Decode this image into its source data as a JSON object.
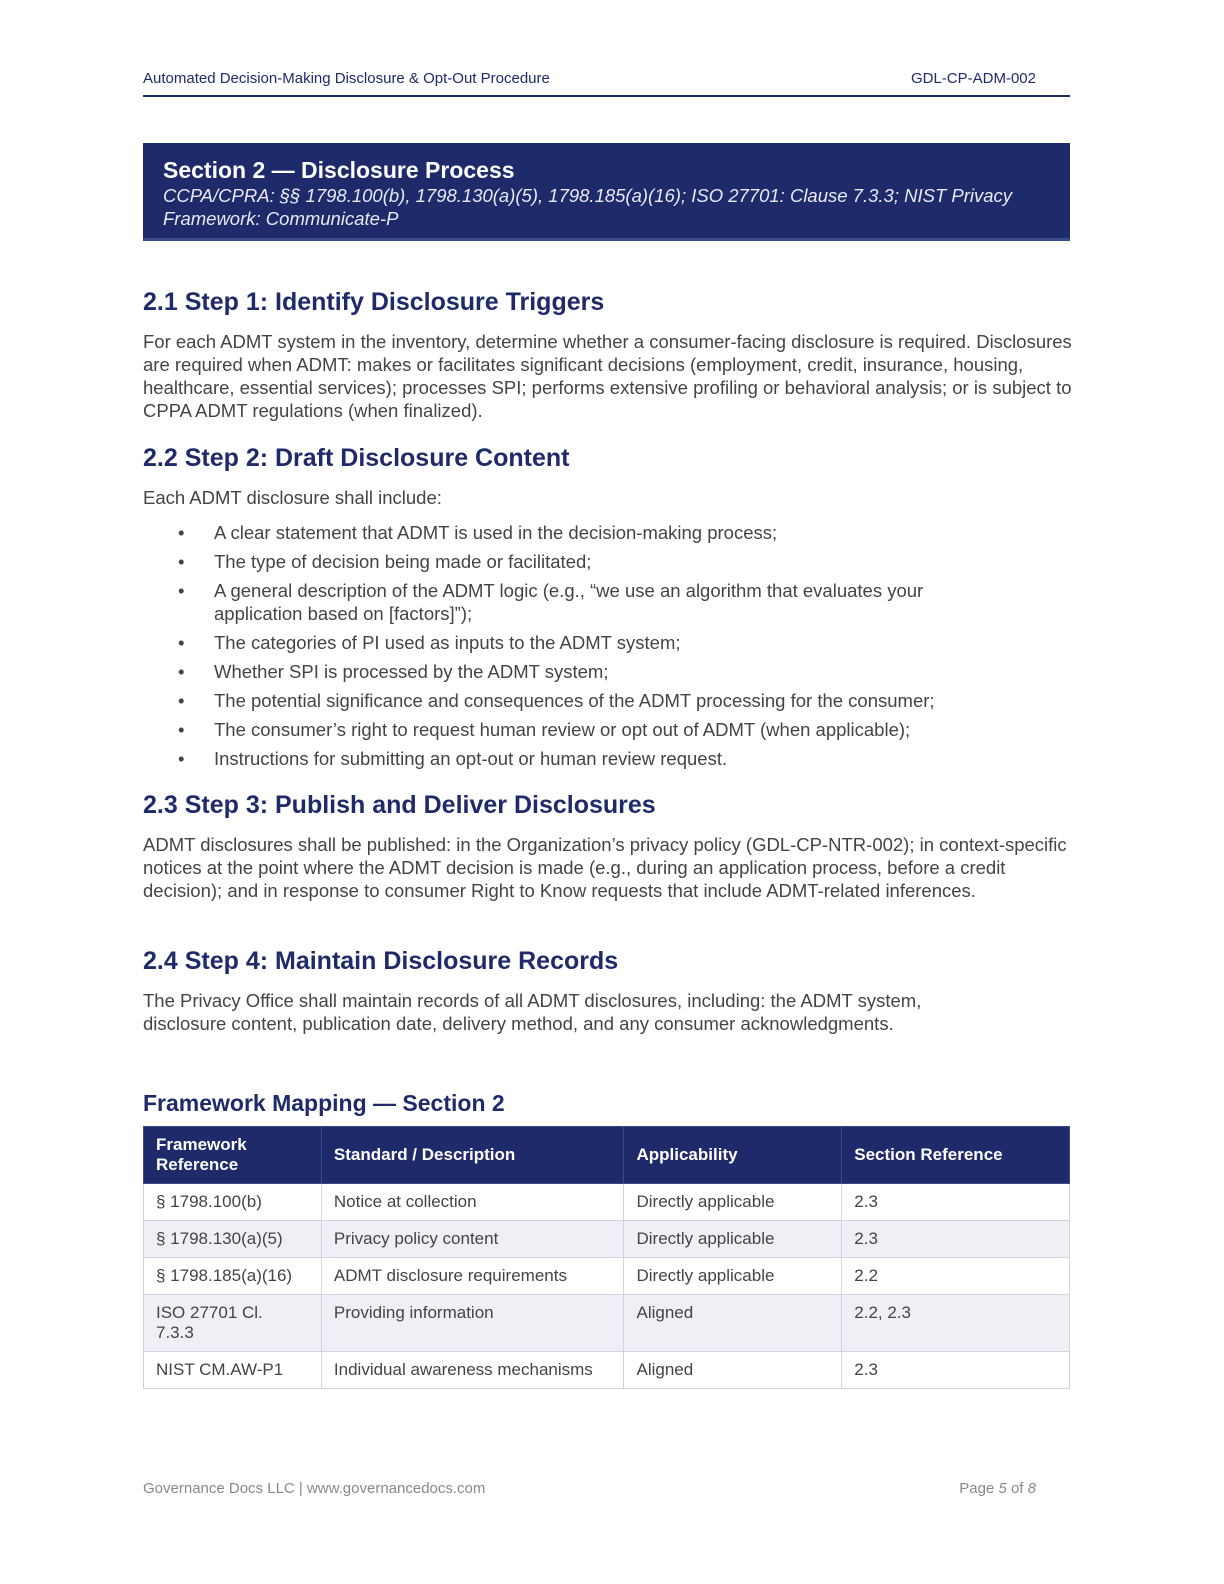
{
  "header": {
    "title": "Automated Decision-Making Disclosure & Opt-Out Procedure",
    "doc_id": "GDL-CP-ADM-002"
  },
  "banner": {
    "title": "Section 2 — Disclosure Process",
    "subtitle": "CCPA/CPRA: §§ 1798.100(b), 1798.130(a)(5), 1798.185(a)(16); ISO 27701: Clause 7.3.3; NIST Privacy Framework: Communicate-P"
  },
  "sections": [
    {
      "heading": "2.1 Step 1: Identify Disclosure Triggers",
      "body": "For each ADMT system in the inventory, determine whether a consumer-facing disclosure is required. Disclosures are required when ADMT: makes or facilitates significant decisions (employment, credit, insurance, housing, healthcare, essential services); processes SPI; performs extensive profiling or behavioral analysis; or is subject to CPPA ADMT regulations (when finalized)."
    },
    {
      "heading": "2.2 Step 2: Draft Disclosure Content",
      "body": "Each ADMT disclosure shall include:",
      "bullets": [
        "A clear statement that ADMT is used in the decision-making process;",
        "The type of decision being made or facilitated;",
        "A general description of the ADMT logic (e.g., “we use an algorithm that evaluates your application based on [factors]”);",
        "The categories of PI used as inputs to the ADMT system;",
        "Whether SPI is processed by the ADMT system;",
        "The potential significance and consequences of the ADMT processing for the consumer;",
        "The consumer’s right to request human review or opt out of ADMT (when applicable);",
        "Instructions for submitting an opt-out or human review request."
      ]
    },
    {
      "heading": "2.3 Step 3: Publish and Deliver Disclosures",
      "body": "ADMT disclosures shall be published: in the Organization’s privacy policy (GDL-CP-NTR-002); in context-specific notices at the point where the ADMT decision is made (e.g., during an application process, before a credit decision); and in response to consumer Right to Know requests that include ADMT-related inferences."
    },
    {
      "heading": "2.4 Step 4: Maintain Disclosure Records",
      "body": "The Privacy Office shall maintain records of all ADMT disclosures, including: the ADMT system, disclosure content, publication date, delivery method, and any consumer acknowledgments."
    }
  ],
  "mapping": {
    "title": "Framework Mapping — Section 2",
    "columns": [
      "Framework Reference",
      "Standard / Description",
      "Applicability",
      "Section Reference"
    ],
    "rows": [
      [
        "§ 1798.100(b)",
        "Notice at collection",
        "Directly applicable",
        "2.3"
      ],
      [
        "§ 1798.130(a)(5)",
        "Privacy policy content",
        "Directly applicable",
        "2.3"
      ],
      [
        "§ 1798.185(a)(16)",
        "ADMT disclosure requirements",
        "Directly applicable",
        "2.2"
      ],
      [
        "ISO 27701 Cl. 7.3.3",
        "Providing information",
        "Aligned",
        "2.2, 2.3"
      ],
      [
        "NIST CM.AW-P1",
        "Individual awareness mechanisms",
        "Aligned",
        "2.3"
      ]
    ]
  },
  "footer": {
    "company": "Governance Docs LLC | www.governancedocs.com",
    "page_prefix": "Page",
    "page": "5",
    "of": "of",
    "total": "8"
  },
  "colors": {
    "navy": "#1f2a6b",
    "text": "#444444"
  }
}
